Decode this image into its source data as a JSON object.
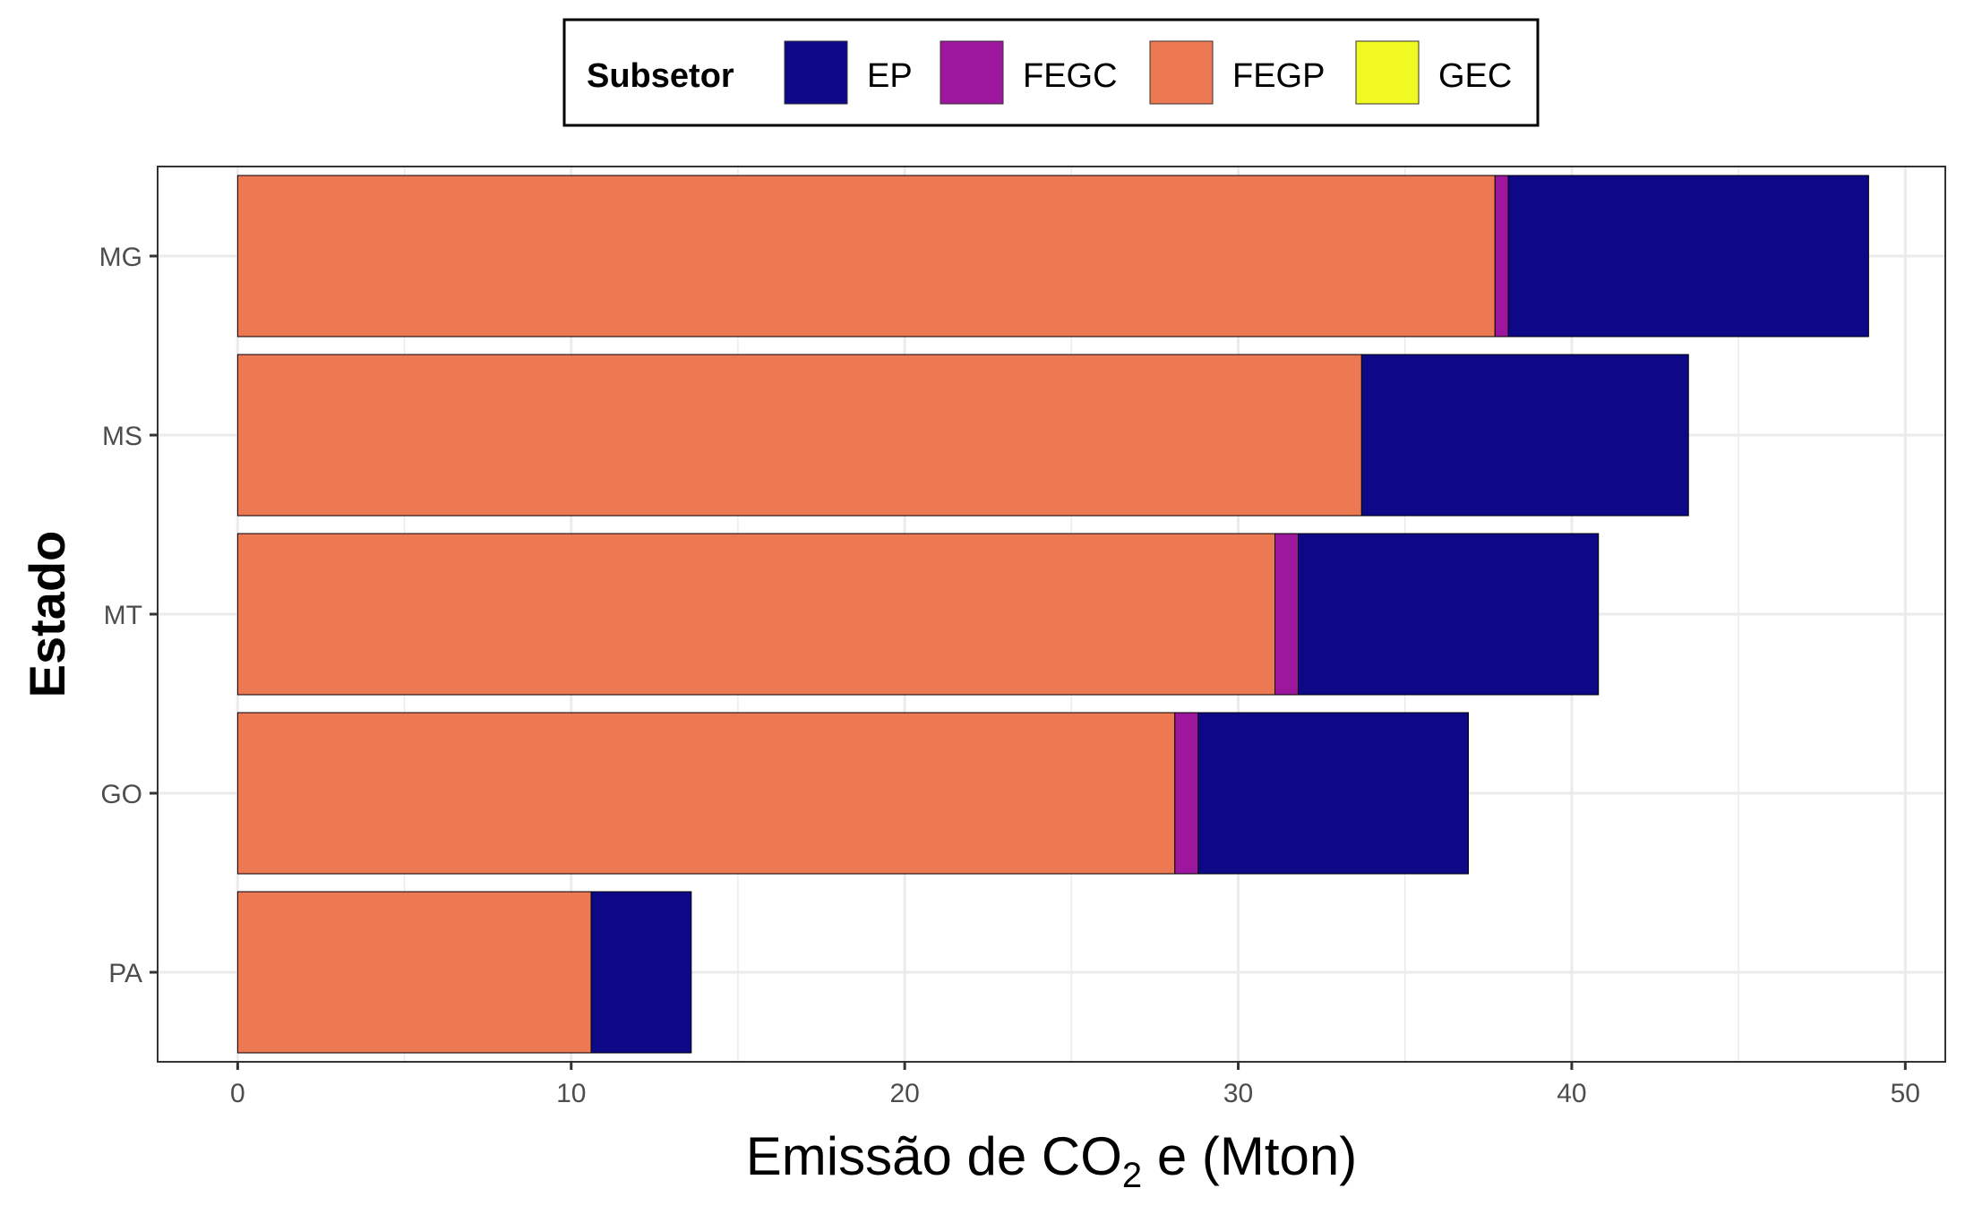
{
  "chart_data": {
    "type": "bar",
    "orientation": "horizontal",
    "stacked": true,
    "categories": [
      "MG",
      "MS",
      "MT",
      "GO",
      "PA"
    ],
    "series": [
      {
        "name": "FEGP",
        "color": "#ED7953",
        "values": [
          37.7,
          33.7,
          31.1,
          28.1,
          10.6
        ]
      },
      {
        "name": "FEGC",
        "color": "#9C179E",
        "values": [
          0.4,
          0.0,
          0.7,
          0.7,
          0.0
        ]
      },
      {
        "name": "EP",
        "color": "#0D0887",
        "values": [
          10.8,
          9.8,
          9.0,
          8.1,
          3.0
        ]
      },
      {
        "name": "GEC",
        "color": "#F0F921",
        "values": [
          0.0,
          0.0,
          0.0,
          0.0,
          0.0
        ]
      }
    ],
    "xlabel_main": "Emissão de CO",
    "xlabel_sub": "2",
    "xlabel_tail": " e (Mton)",
    "ylabel": "Estado",
    "xlim": [
      -2.4,
      51.2
    ],
    "xticks": [
      "0",
      "10",
      "20",
      "30",
      "40",
      "50"
    ],
    "grid": true,
    "legend": {
      "title": "Subsetor",
      "position": "top",
      "items": [
        {
          "label": "EP",
          "color": "#0D0887"
        },
        {
          "label": "FEGC",
          "color": "#9C179E"
        },
        {
          "label": "FEGP",
          "color": "#ED7953"
        },
        {
          "label": "GEC",
          "color": "#F0F921"
        }
      ]
    }
  }
}
